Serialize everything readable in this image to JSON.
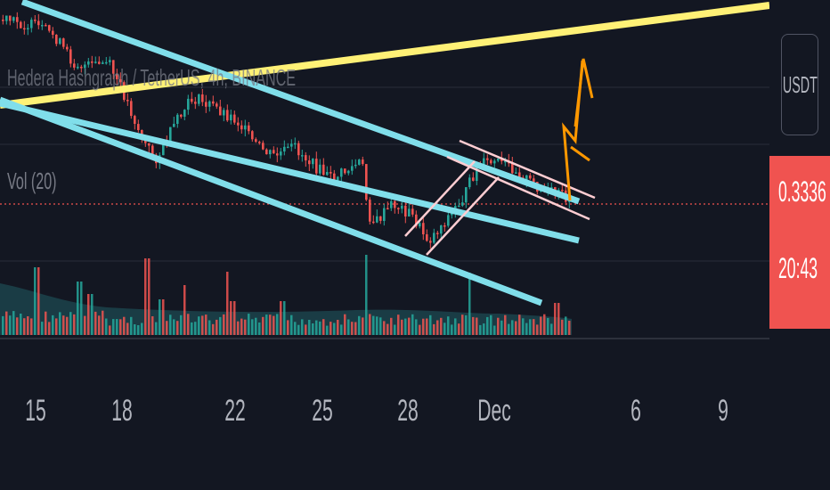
{
  "header": {
    "symbol_title": "Hedera Hashgraph / TetherUS, 4h, BINANCE",
    "volume_indicator": "Vol (20)"
  },
  "price_scale": {
    "currency": "USDT",
    "last_price": "0.3336",
    "countdown": "20:43",
    "last_price_color": "#f05350"
  },
  "chart_data": {
    "type": "candlestick",
    "x_tick_labels": [
      "15",
      "18",
      "22",
      "25",
      "28",
      "Dec",
      "6",
      "9"
    ],
    "last_price": 0.3336,
    "price_series_description_colors": {
      "up": "#26a69a",
      "down": "#ef5350"
    },
    "trendlines": [
      {
        "name": "",
        "color": "#fff176"
      },
      {
        "name": "",
        "color": "#80deea"
      },
      {
        "name": "",
        "color": "#80deea"
      },
      {
        "name": "",
        "color": "#80deea"
      },
      {
        "name": "",
        "color": "#ffcdd2"
      }
    ],
    "annotations": [
      {
        "type": "arrow-path",
        "color": "#ff9800"
      }
    ],
    "grid": true
  }
}
